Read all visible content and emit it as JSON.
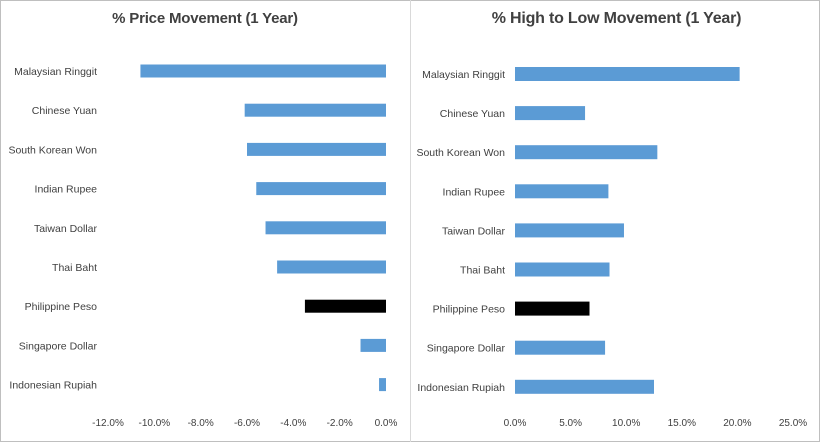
{
  "chart_data": [
    {
      "type": "bar",
      "orientation": "horizontal",
      "title": "% Price Movement (1 Year)",
      "categories": [
        "Malaysian Ringgit",
        "Chinese Yuan",
        "South Korean Won",
        "Indian Rupee",
        "Taiwan Dollar",
        "Thai Baht",
        "Philippine Peso",
        "Singapore Dollar",
        "Indonesian Rupiah"
      ],
      "values": [
        -10.6,
        -6.1,
        -6.0,
        -5.6,
        -5.2,
        -4.7,
        -3.5,
        -1.1,
        -0.3
      ],
      "xlim": [
        -12.0,
        0.0
      ],
      "xticks": [
        "-12.0%",
        "-10.0%",
        "-8.0%",
        "-6.0%",
        "-4.0%",
        "-2.0%",
        "0.0%"
      ],
      "grid": false,
      "legend": "none",
      "highlight_category": "Philippine Peso",
      "bar_color": "#5b9bd5",
      "highlight_color": "#000000"
    },
    {
      "type": "bar",
      "orientation": "horizontal",
      "title": "% High to Low Movement (1 Year)",
      "categories": [
        "Malaysian Ringgit",
        "Chinese Yuan",
        "South Korean Won",
        "Indian Rupee",
        "Taiwan Dollar",
        "Thai Baht",
        "Philippine Peso",
        "Singapore Dollar",
        "Indonesian Rupiah"
      ],
      "values": [
        20.2,
        6.3,
        12.8,
        8.4,
        9.8,
        8.5,
        6.7,
        8.1,
        12.5
      ],
      "xlim": [
        0.0,
        25.0
      ],
      "xticks": [
        "0.0%",
        "5.0%",
        "10.0%",
        "15.0%",
        "20.0%",
        "25.0%"
      ],
      "grid": false,
      "legend": "none",
      "highlight_category": "Philippine Peso",
      "bar_color": "#5b9bd5",
      "highlight_color": "#000000"
    }
  ]
}
